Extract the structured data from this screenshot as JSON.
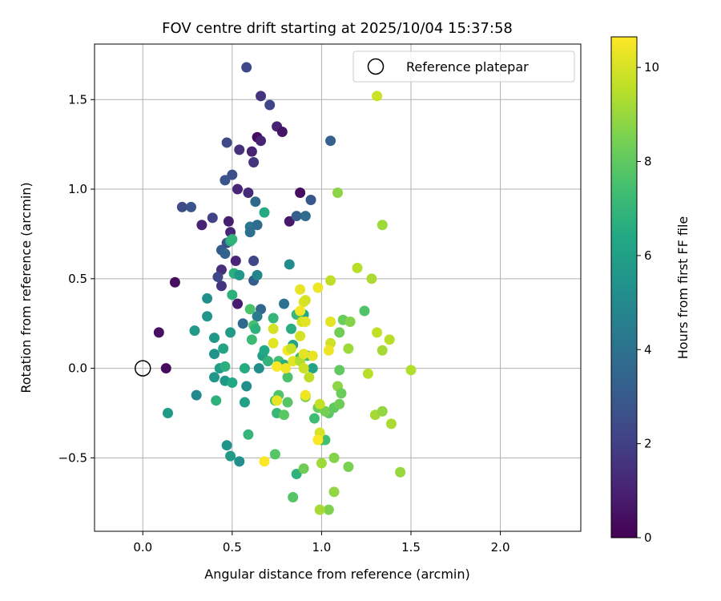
{
  "chart_data": {
    "type": "scatter",
    "title": "FOV centre drift starting at 2025/10/04 15:37:58",
    "xlabel": "Angular distance from reference (arcmin)",
    "ylabel": "Rotation from reference (arcmin)",
    "xlim": [
      -0.27,
      2.45
    ],
    "ylim": [
      -0.91,
      1.81
    ],
    "xticks": [
      0.0,
      0.5,
      1.0,
      1.5,
      2.0
    ],
    "xtick_labels": [
      "0.0",
      "0.5",
      "1.0",
      "1.5",
      "2.0"
    ],
    "yticks": [
      -0.5,
      0.0,
      0.5,
      1.0,
      1.5
    ],
    "ytick_labels": [
      "−0.5",
      "0.0",
      "0.5",
      "1.0",
      "1.5"
    ],
    "grid": true,
    "legend": {
      "location": "top-right",
      "label": "Reference platepar"
    },
    "reference_point": {
      "x": 0.0,
      "y": 0.0
    },
    "colorbar": {
      "label": "Hours from first FF file",
      "min": 0,
      "max": 10.65,
      "ticks": [
        0,
        2,
        4,
        6,
        8,
        10
      ],
      "tick_labels": [
        "0",
        "2",
        "4",
        "6",
        "8",
        "10"
      ],
      "colormap": "viridis"
    },
    "points": [
      {
        "x": 0.13,
        "y": 0.0,
        "h": 0.3
      },
      {
        "x": 0.09,
        "y": 0.2,
        "h": 0.5
      },
      {
        "x": 0.18,
        "y": 0.48,
        "h": 0.4
      },
      {
        "x": 0.33,
        "y": 0.8,
        "h": 1.0
      },
      {
        "x": 0.48,
        "y": 0.82,
        "h": 0.9
      },
      {
        "x": 0.49,
        "y": 0.76,
        "h": 1.2
      },
      {
        "x": 0.52,
        "y": 0.6,
        "h": 1.1
      },
      {
        "x": 0.53,
        "y": 0.36,
        "h": 0.8
      },
      {
        "x": 0.44,
        "y": 0.46,
        "h": 1.6
      },
      {
        "x": 0.44,
        "y": 0.55,
        "h": 1.4
      },
      {
        "x": 0.59,
        "y": 0.98,
        "h": 1.3
      },
      {
        "x": 0.53,
        "y": 1.0,
        "h": 1.1
      },
      {
        "x": 0.61,
        "y": 1.21,
        "h": 1.0
      },
      {
        "x": 0.54,
        "y": 1.22,
        "h": 1.5
      },
      {
        "x": 0.64,
        "y": 1.29,
        "h": 0.3
      },
      {
        "x": 0.66,
        "y": 1.27,
        "h": 1.0
      },
      {
        "x": 0.75,
        "y": 1.35,
        "h": 1.0
      },
      {
        "x": 0.78,
        "y": 1.32,
        "h": 0.6
      },
      {
        "x": 0.88,
        "y": 0.98,
        "h": 0.4
      },
      {
        "x": 0.82,
        "y": 0.82,
        "h": 0.7
      },
      {
        "x": 0.62,
        "y": 1.15,
        "h": 1.6
      },
      {
        "x": 0.58,
        "y": 1.68,
        "h": 2.3
      },
      {
        "x": 0.66,
        "y": 1.52,
        "h": 1.6
      },
      {
        "x": 0.71,
        "y": 1.47,
        "h": 2.2
      },
      {
        "x": 0.47,
        "y": 1.26,
        "h": 2.3
      },
      {
        "x": 0.5,
        "y": 1.08,
        "h": 2.6
      },
      {
        "x": 0.46,
        "y": 1.05,
        "h": 2.8
      },
      {
        "x": 0.22,
        "y": 0.9,
        "h": 2.4
      },
      {
        "x": 0.27,
        "y": 0.9,
        "h": 2.8
      },
      {
        "x": 0.39,
        "y": 0.84,
        "h": 2.1
      },
      {
        "x": 0.44,
        "y": 0.66,
        "h": 3.0
      },
      {
        "x": 0.47,
        "y": 0.7,
        "h": 2.6
      },
      {
        "x": 0.42,
        "y": 0.51,
        "h": 2.3
      },
      {
        "x": 0.62,
        "y": 0.6,
        "h": 2.2
      },
      {
        "x": 0.63,
        "y": 0.93,
        "h": 3.6
      },
      {
        "x": 0.6,
        "y": 0.79,
        "h": 4.2
      },
      {
        "x": 0.6,
        "y": 0.76,
        "h": 3.9
      },
      {
        "x": 0.64,
        "y": 0.8,
        "h": 3.8
      },
      {
        "x": 0.86,
        "y": 0.85,
        "h": 3.2
      },
      {
        "x": 0.91,
        "y": 0.85,
        "h": 3.7
      },
      {
        "x": 0.94,
        "y": 0.94,
        "h": 2.9
      },
      {
        "x": 1.05,
        "y": 1.27,
        "h": 3.3
      },
      {
        "x": 0.46,
        "y": 0.64,
        "h": 3.4
      },
      {
        "x": 0.62,
        "y": 0.49,
        "h": 3.1
      },
      {
        "x": 0.64,
        "y": 0.52,
        "h": 4.8
      },
      {
        "x": 0.66,
        "y": 0.33,
        "h": 3.5
      },
      {
        "x": 0.56,
        "y": 0.25,
        "h": 3.6
      },
      {
        "x": 0.64,
        "y": 0.29,
        "h": 4.4
      },
      {
        "x": 0.79,
        "y": 0.36,
        "h": 4.0
      },
      {
        "x": 0.82,
        "y": 0.58,
        "h": 5.1
      },
      {
        "x": 0.68,
        "y": 0.87,
        "h": 6.5
      },
      {
        "x": 0.49,
        "y": 0.71,
        "h": 6.6
      },
      {
        "x": 0.5,
        "y": 0.72,
        "h": 6.9
      },
      {
        "x": 0.51,
        "y": 0.53,
        "h": 6.7
      },
      {
        "x": 0.5,
        "y": 0.41,
        "h": 6.8
      },
      {
        "x": 0.54,
        "y": 0.52,
        "h": 5.6
      },
      {
        "x": 0.36,
        "y": 0.39,
        "h": 5.3
      },
      {
        "x": 0.36,
        "y": 0.29,
        "h": 5.5
      },
      {
        "x": 0.29,
        "y": 0.21,
        "h": 5.7
      },
      {
        "x": 0.4,
        "y": 0.17,
        "h": 5.6
      },
      {
        "x": 0.49,
        "y": 0.2,
        "h": 5.8
      },
      {
        "x": 0.45,
        "y": 0.11,
        "h": 6.2
      },
      {
        "x": 0.4,
        "y": 0.08,
        "h": 5.4
      },
      {
        "x": 0.43,
        "y": 0.0,
        "h": 5.9
      },
      {
        "x": 0.46,
        "y": 0.01,
        "h": 6.7
      },
      {
        "x": 0.4,
        "y": -0.05,
        "h": 5.6
      },
      {
        "x": 0.46,
        "y": -0.07,
        "h": 5.7
      },
      {
        "x": 0.5,
        "y": -0.08,
        "h": 6.4
      },
      {
        "x": 0.57,
        "y": 0.0,
        "h": 6.5
      },
      {
        "x": 0.58,
        "y": -0.1,
        "h": 5.1
      },
      {
        "x": 0.3,
        "y": -0.15,
        "h": 5.0
      },
      {
        "x": 0.41,
        "y": -0.18,
        "h": 6.8
      },
      {
        "x": 0.57,
        "y": -0.19,
        "h": 6.0
      },
      {
        "x": 0.14,
        "y": -0.25,
        "h": 5.8
      },
      {
        "x": 0.47,
        "y": -0.43,
        "h": 5.4
      },
      {
        "x": 0.49,
        "y": -0.49,
        "h": 5.8
      },
      {
        "x": 0.54,
        "y": -0.52,
        "h": 5.3
      },
      {
        "x": 0.59,
        "y": -0.37,
        "h": 7.0
      },
      {
        "x": 0.6,
        "y": 0.33,
        "h": 7.6
      },
      {
        "x": 0.61,
        "y": 0.16,
        "h": 7.2
      },
      {
        "x": 0.62,
        "y": 0.24,
        "h": 7.5
      },
      {
        "x": 0.63,
        "y": 0.22,
        "h": 6.8
      },
      {
        "x": 0.65,
        "y": 0.0,
        "h": 5.2
      },
      {
        "x": 0.67,
        "y": 0.07,
        "h": 6.0
      },
      {
        "x": 0.68,
        "y": 0.1,
        "h": 6.4
      },
      {
        "x": 0.7,
        "y": 0.04,
        "h": 6.9
      },
      {
        "x": 0.73,
        "y": 0.28,
        "h": 7.0
      },
      {
        "x": 0.74,
        "y": -0.18,
        "h": 7.5
      },
      {
        "x": 0.76,
        "y": -0.15,
        "h": 7.7
      },
      {
        "x": 0.75,
        "y": -0.25,
        "h": 7.1
      },
      {
        "x": 0.79,
        "y": -0.26,
        "h": 7.9
      },
      {
        "x": 0.81,
        "y": -0.19,
        "h": 7.8
      },
      {
        "x": 0.76,
        "y": 0.04,
        "h": 7.4
      },
      {
        "x": 0.79,
        "y": 0.02,
        "h": 6.7
      },
      {
        "x": 0.81,
        "y": -0.05,
        "h": 7.6
      },
      {
        "x": 0.83,
        "y": 0.22,
        "h": 6.6
      },
      {
        "x": 0.84,
        "y": 0.13,
        "h": 6.2
      },
      {
        "x": 0.86,
        "y": 0.3,
        "h": 7.1
      },
      {
        "x": 0.88,
        "y": 0.06,
        "h": 7.3
      },
      {
        "x": 0.9,
        "y": 0.3,
        "h": 6.4
      },
      {
        "x": 0.92,
        "y": 0.07,
        "h": 7.2
      },
      {
        "x": 0.95,
        "y": 0.0,
        "h": 6.2
      },
      {
        "x": 0.74,
        "y": -0.48,
        "h": 7.8
      },
      {
        "x": 0.84,
        "y": -0.72,
        "h": 7.8
      },
      {
        "x": 0.86,
        "y": -0.59,
        "h": 6.8
      },
      {
        "x": 0.9,
        "y": -0.56,
        "h": 8.3
      },
      {
        "x": 0.91,
        "y": -0.16,
        "h": 8.6
      },
      {
        "x": 0.96,
        "y": -0.28,
        "h": 7.3
      },
      {
        "x": 0.98,
        "y": -0.22,
        "h": 8.2
      },
      {
        "x": 1.0,
        "y": -0.4,
        "h": 6.9
      },
      {
        "x": 1.0,
        "y": -0.53,
        "h": 9.1
      },
      {
        "x": 1.02,
        "y": -0.4,
        "h": 7.4
      },
      {
        "x": 1.04,
        "y": -0.79,
        "h": 8.6
      },
      {
        "x": 0.99,
        "y": -0.79,
        "h": 9.2
      },
      {
        "x": 1.07,
        "y": -0.69,
        "h": 8.9
      },
      {
        "x": 1.07,
        "y": -0.5,
        "h": 8.7
      },
      {
        "x": 1.04,
        "y": -0.25,
        "h": 7.9
      },
      {
        "x": 1.02,
        "y": -0.24,
        "h": 8.4
      },
      {
        "x": 1.07,
        "y": -0.22,
        "h": 8.0
      },
      {
        "x": 1.1,
        "y": -0.2,
        "h": 8.3
      },
      {
        "x": 1.09,
        "y": -0.1,
        "h": 8.8
      },
      {
        "x": 1.11,
        "y": -0.14,
        "h": 8.2
      },
      {
        "x": 1.1,
        "y": -0.01,
        "h": 8.0
      },
      {
        "x": 1.15,
        "y": -0.55,
        "h": 8.5
      },
      {
        "x": 1.1,
        "y": 0.2,
        "h": 8.3
      },
      {
        "x": 1.12,
        "y": 0.27,
        "h": 8.2
      },
      {
        "x": 1.16,
        "y": 0.26,
        "h": 8.7
      },
      {
        "x": 1.24,
        "y": 0.32,
        "h": 7.7
      },
      {
        "x": 1.15,
        "y": 0.11,
        "h": 9.1
      },
      {
        "x": 1.2,
        "y": 0.56,
        "h": 9.5
      },
      {
        "x": 1.28,
        "y": 0.5,
        "h": 9.3
      },
      {
        "x": 1.26,
        "y": -0.03,
        "h": 9.5
      },
      {
        "x": 1.3,
        "y": -0.26,
        "h": 9.2
      },
      {
        "x": 1.34,
        "y": -0.24,
        "h": 8.9
      },
      {
        "x": 1.39,
        "y": -0.31,
        "h": 9.3
      },
      {
        "x": 1.44,
        "y": -0.58,
        "h": 9.0
      },
      {
        "x": 1.31,
        "y": 0.2,
        "h": 9.7
      },
      {
        "x": 1.34,
        "y": 0.1,
        "h": 9.2
      },
      {
        "x": 1.38,
        "y": 0.16,
        "h": 9.5
      },
      {
        "x": 1.5,
        "y": -0.01,
        "h": 9.4
      },
      {
        "x": 1.34,
        "y": 0.8,
        "h": 9.1
      },
      {
        "x": 1.09,
        "y": 0.98,
        "h": 8.8
      },
      {
        "x": 1.31,
        "y": 1.52,
        "h": 9.8
      },
      {
        "x": 1.05,
        "y": 0.49,
        "h": 9.6
      },
      {
        "x": 1.05,
        "y": 0.26,
        "h": 10.2
      },
      {
        "x": 1.05,
        "y": 0.14,
        "h": 9.9
      },
      {
        "x": 1.04,
        "y": 0.1,
        "h": 10.4
      },
      {
        "x": 0.98,
        "y": 0.45,
        "h": 10.4
      },
      {
        "x": 0.88,
        "y": 0.44,
        "h": 10.3
      },
      {
        "x": 0.9,
        "y": 0.37,
        "h": 10.1
      },
      {
        "x": 0.91,
        "y": 0.38,
        "h": 10.0
      },
      {
        "x": 0.88,
        "y": 0.32,
        "h": 10.5
      },
      {
        "x": 0.89,
        "y": 0.26,
        "h": 9.9
      },
      {
        "x": 0.91,
        "y": 0.26,
        "h": 10.2
      },
      {
        "x": 0.88,
        "y": 0.18,
        "h": 10.0
      },
      {
        "x": 0.73,
        "y": 0.22,
        "h": 10.0
      },
      {
        "x": 0.73,
        "y": 0.14,
        "h": 10.2
      },
      {
        "x": 0.81,
        "y": 0.1,
        "h": 10.5
      },
      {
        "x": 0.83,
        "y": 0.11,
        "h": 9.8
      },
      {
        "x": 0.84,
        "y": 0.04,
        "h": 10.2
      },
      {
        "x": 0.88,
        "y": 0.04,
        "h": 9.4
      },
      {
        "x": 0.9,
        "y": 0.08,
        "h": 10.2
      },
      {
        "x": 0.95,
        "y": 0.07,
        "h": 10.3
      },
      {
        "x": 0.9,
        "y": 0.0,
        "h": 9.8
      },
      {
        "x": 0.93,
        "y": -0.05,
        "h": 9.6
      },
      {
        "x": 0.75,
        "y": 0.01,
        "h": 10.6
      },
      {
        "x": 0.8,
        "y": 0.0,
        "h": 10.4
      },
      {
        "x": 0.75,
        "y": -0.18,
        "h": 10.3
      },
      {
        "x": 0.91,
        "y": -0.15,
        "h": 10.4
      },
      {
        "x": 0.99,
        "y": -0.2,
        "h": 9.7
      },
      {
        "x": 0.99,
        "y": -0.36,
        "h": 10.0
      },
      {
        "x": 0.98,
        "y": -0.4,
        "h": 10.6
      },
      {
        "x": 0.68,
        "y": -0.52,
        "h": 10.6
      }
    ]
  }
}
